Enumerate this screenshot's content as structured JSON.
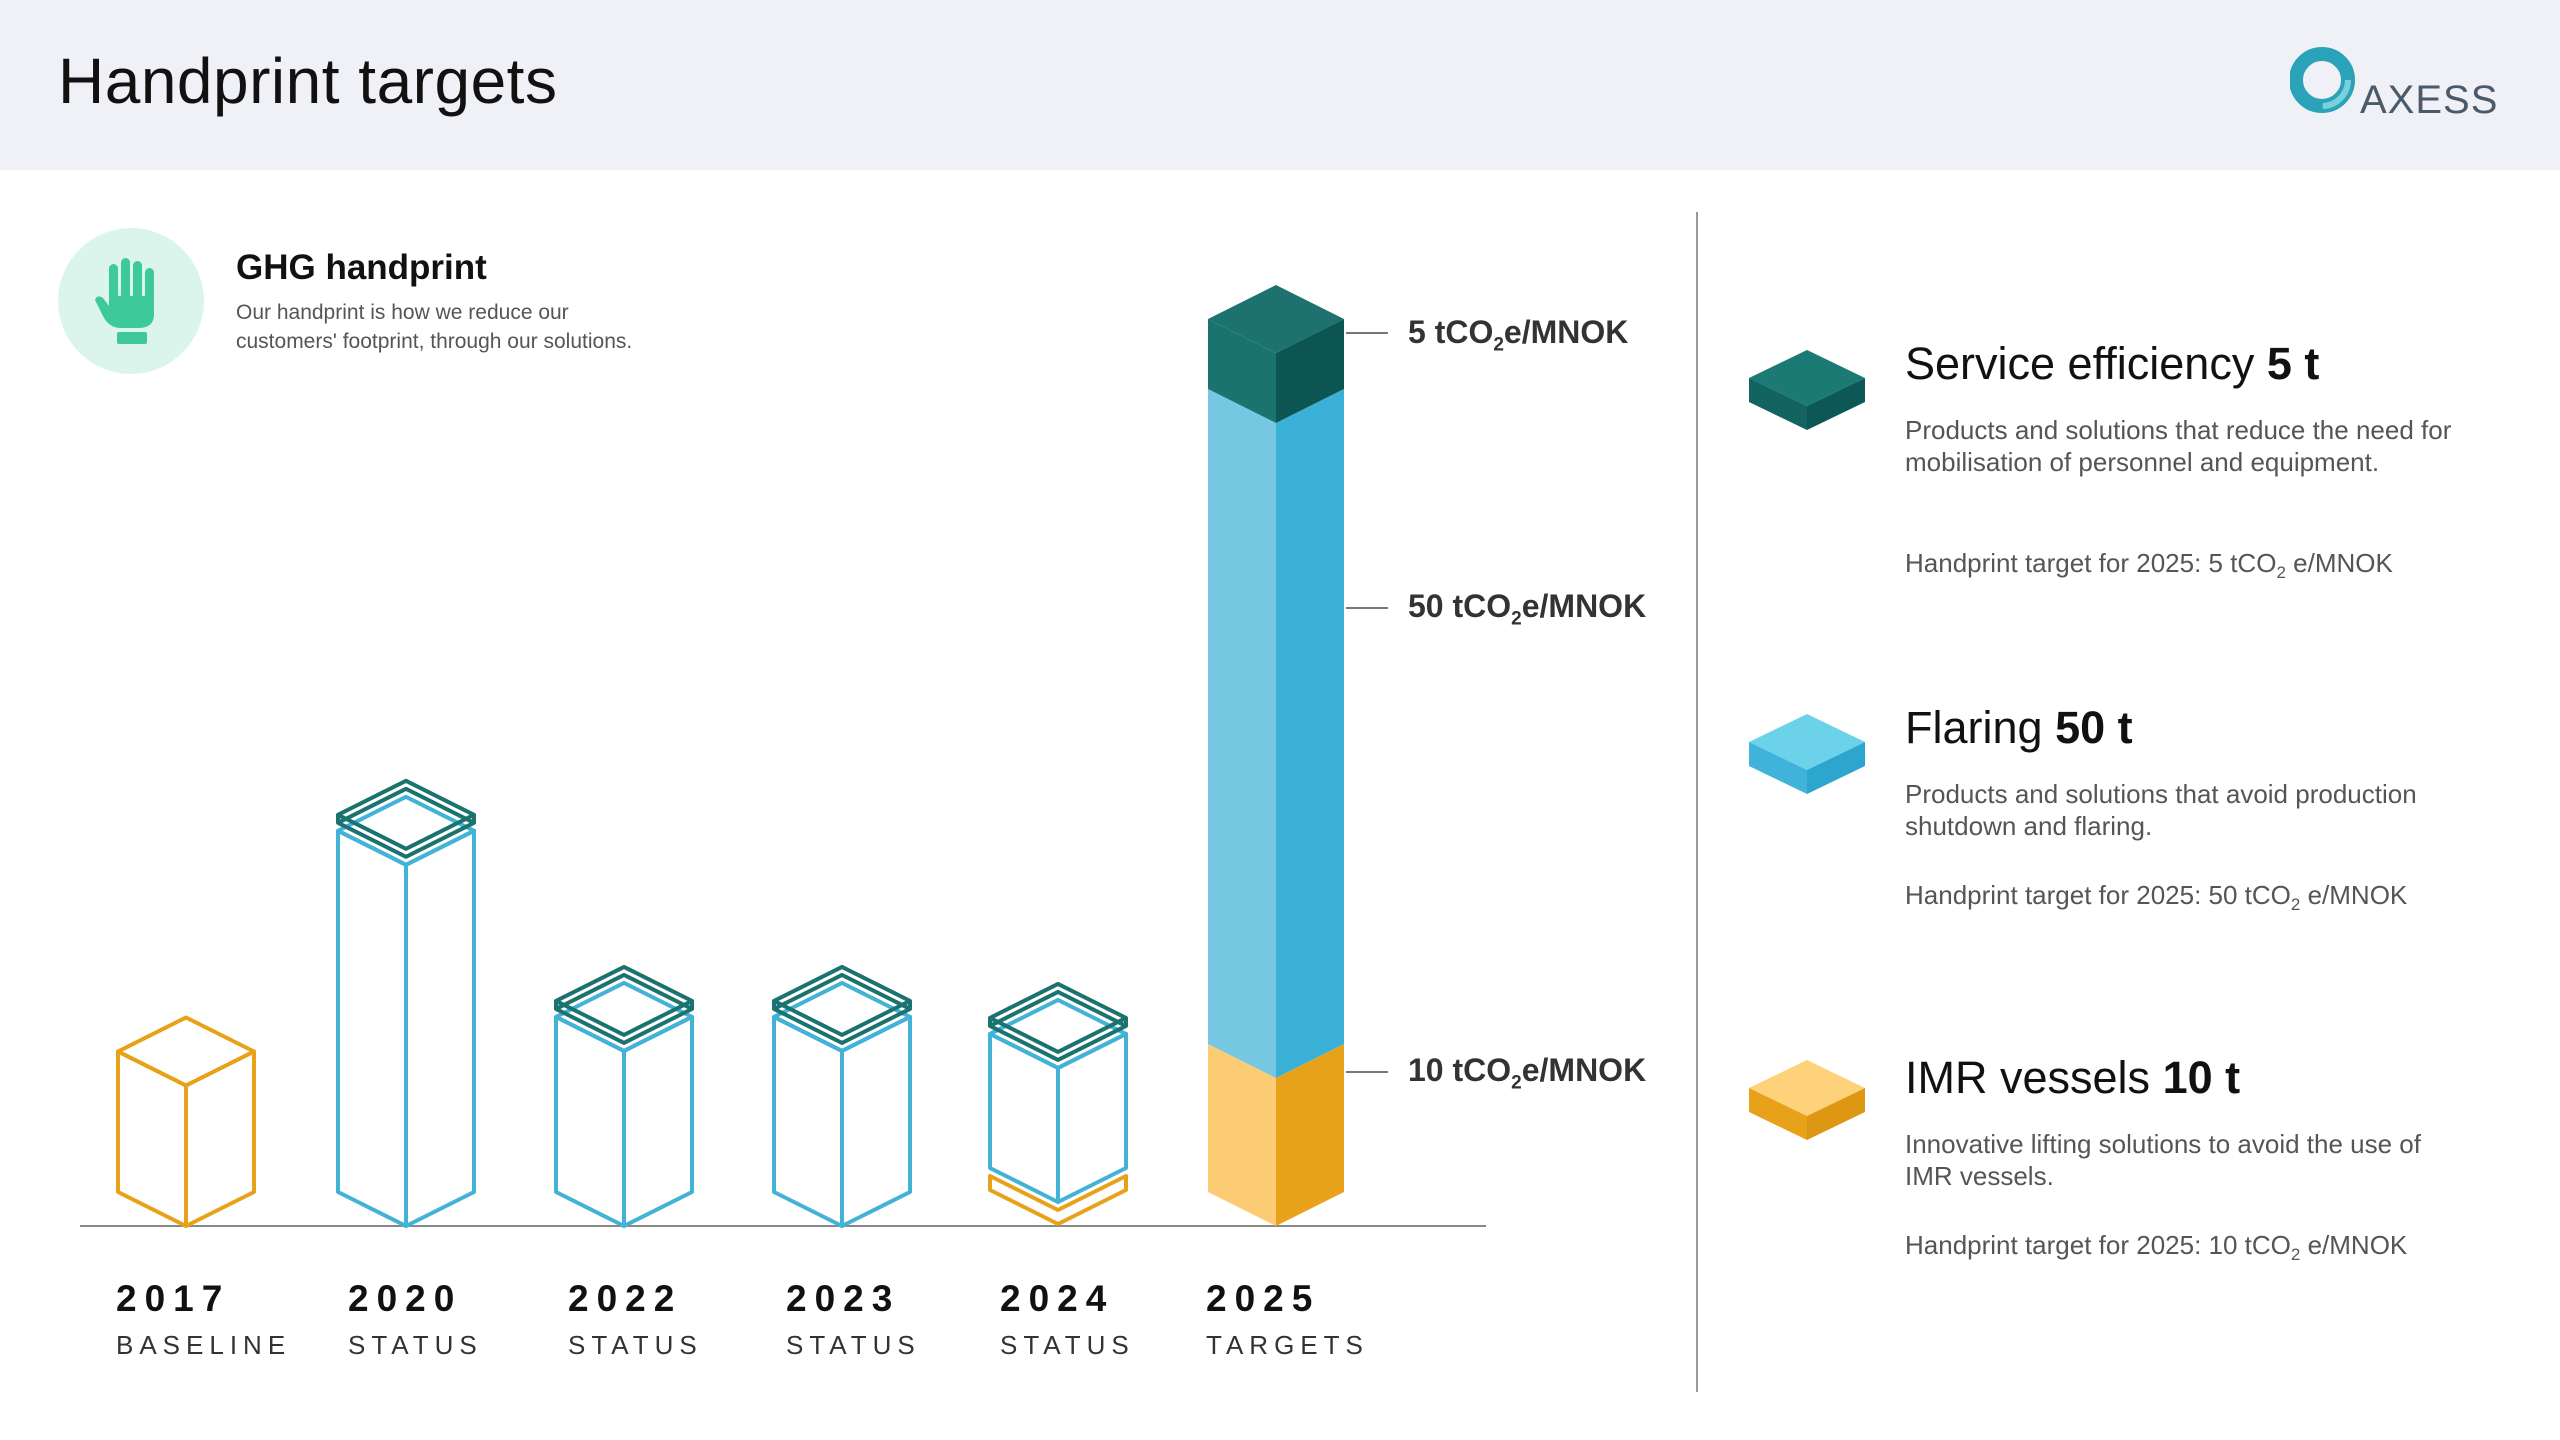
{
  "page": {
    "title": "Handprint targets",
    "logo_text": "AXESS"
  },
  "intro": {
    "title": "GHG handprint",
    "description": "Our handprint is how we reduce our customers' footprint, through our solutions.",
    "icon": "hand-icon"
  },
  "colors": {
    "service_efficiency": "#1b7370",
    "flaring": "#3fb3da",
    "imr_vessels": "#e8a21a",
    "outline_bar": "#42b3d6"
  },
  "chart_data": {
    "type": "bar",
    "categories": [
      "2017",
      "2020",
      "2022",
      "2023",
      "2024",
      "2025"
    ],
    "category_sublabels": [
      "BASELINE",
      "STATUS",
      "STATUS",
      "STATUS",
      "STATUS",
      "TARGETS"
    ],
    "series": [
      {
        "name": "IMR vessels",
        "values": [
          20,
          0,
          0,
          0,
          4,
          10
        ],
        "color": "#e8a21a"
      },
      {
        "name": "Flaring",
        "values": [
          0,
          44,
          20,
          20,
          16,
          50
        ],
        "color": "#3fb3da"
      },
      {
        "name": "Service efficiency",
        "values": [
          0,
          2,
          2,
          2,
          3,
          5
        ],
        "color": "#1b7370"
      }
    ],
    "stacked": true,
    "title": "",
    "xlabel": "",
    "ylabel": "",
    "grid": false,
    "annotations": [
      {
        "prefix": "5 tCO",
        "sub": "2",
        "suffix": "e/MNOK"
      },
      {
        "prefix": "50 tCO",
        "sub": "2",
        "suffix": "e/MNOK"
      },
      {
        "prefix": "10 tCO",
        "sub": "2",
        "suffix": "e/MNOK"
      }
    ]
  },
  "legend": [
    {
      "name": "Service efficiency",
      "value": "5 t",
      "description": "Products and solutions that reduce the need for mobilisation of personnel and equipment.",
      "target_prefix": "Handprint target for 2025: 5 tCO",
      "target_sub": "2",
      "target_suffix": " e/MNOK"
    },
    {
      "name": "Flaring",
      "value": "50 t",
      "description": "Products and solutions that avoid production shutdown and flaring.",
      "target_prefix": "Handprint target for 2025: 50 tCO",
      "target_sub": "2",
      "target_suffix": " e/MNOK"
    },
    {
      "name": "IMR vessels",
      "value": "10 t",
      "description": "Innovative lifting solutions to avoid the use of IMR vessels.",
      "target_prefix": "Handprint target for 2025: 10 tCO",
      "target_sub": "2",
      "target_suffix": " e/MNOK"
    }
  ]
}
